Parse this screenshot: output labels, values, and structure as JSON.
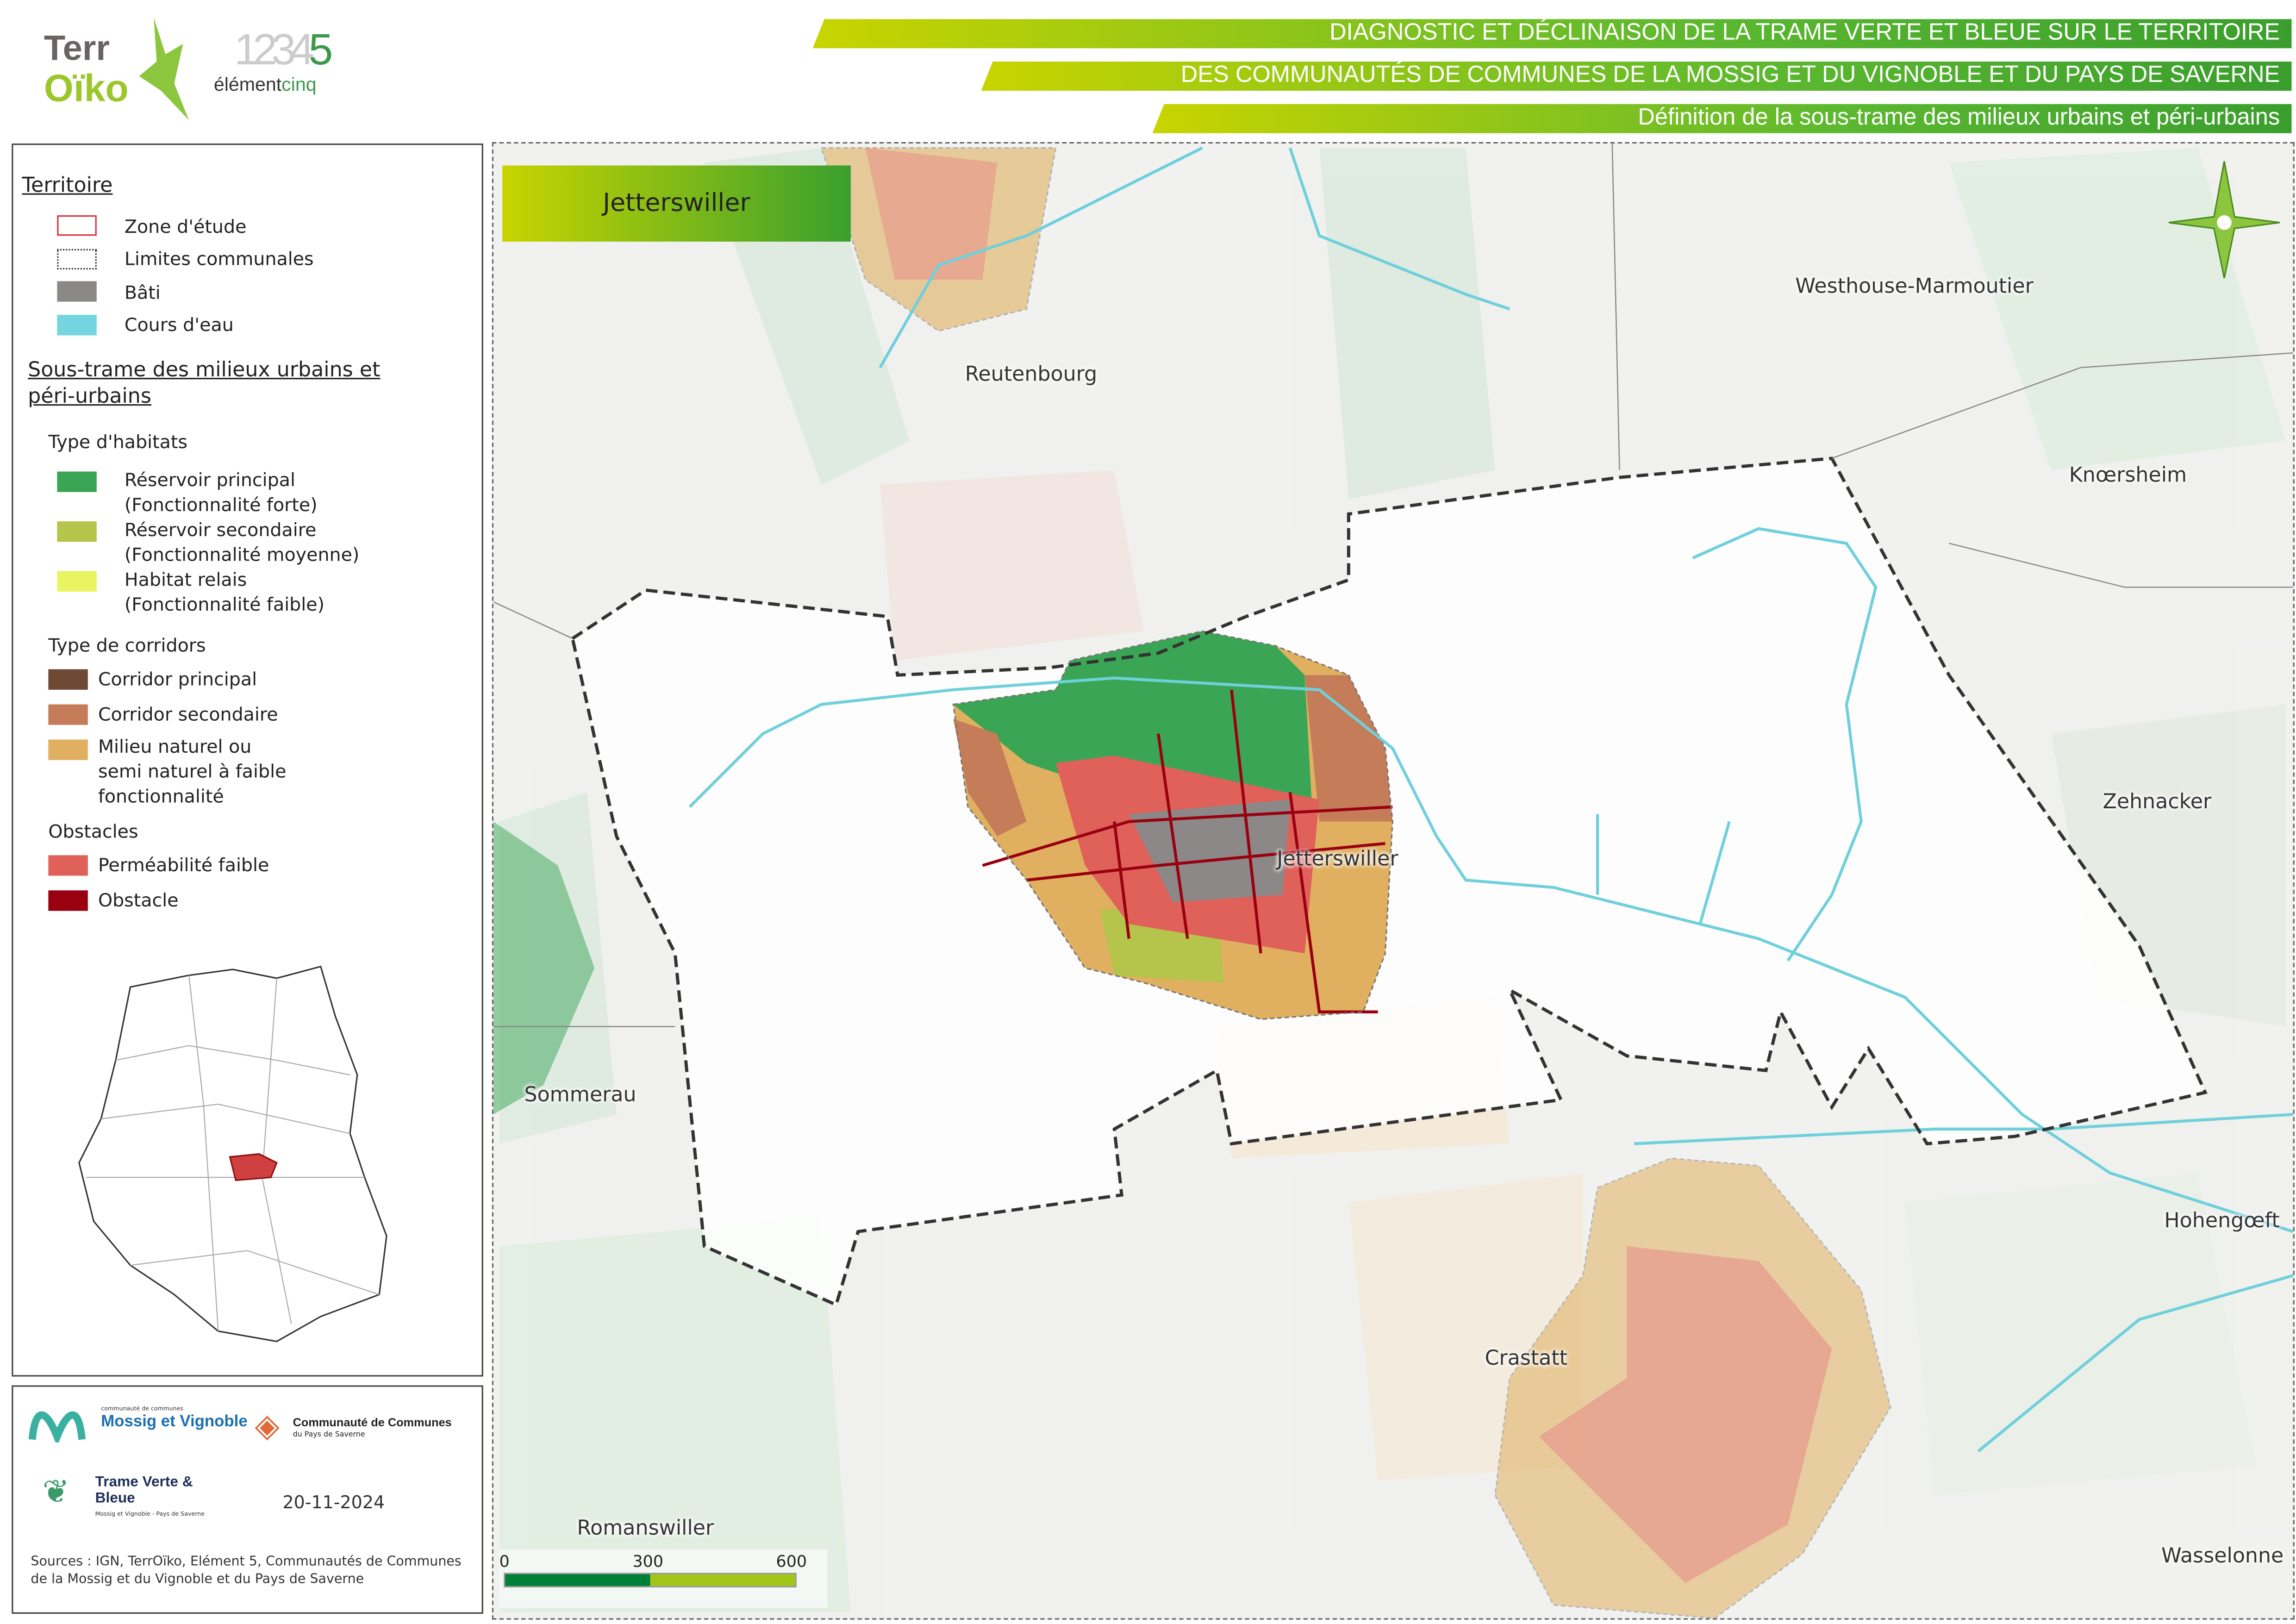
{
  "header": {
    "line1": "DIAGNOSTIC ET DÉCLINAISON DE LA TRAME VERTE ET BLEUE SUR LE TERRITOIRE",
    "line2": "DES COMMUNAUTÉS DE COMMUNES DE LA MOSSIG ET DU VIGNOBLE ET DU PAYS DE SAVERNE",
    "line3": "Définition de la sous-trame des milieux urbains et péri-urbains",
    "logo1": "TerrOïko",
    "logo2_digits": "12345",
    "logo2_text": "élémentcinq"
  },
  "legend": {
    "territoire_title": "Territoire",
    "territoire_items": [
      {
        "label": "Zone d'étude",
        "color": "#e03040"
      },
      {
        "label": "Limites communales",
        "color": "#333333"
      },
      {
        "label": "Bâti",
        "color": "#8c8888"
      },
      {
        "label": "Cours d'eau",
        "color": "#74d4e0"
      }
    ],
    "soustrame_title": "Sous-trame des milieux urbains et péri-urbains",
    "habitats_title": "Type d'habitats",
    "habitats": [
      {
        "label": "Réservoir principal",
        "sub": "(Fonctionnalité forte)",
        "color": "#3aa655"
      },
      {
        "label": "Réservoir secondaire",
        "sub": "(Fonctionnalité moyenne)",
        "color": "#b5c44a"
      },
      {
        "label": "Habitat relais",
        "sub": "(Fonctionnalité faible)",
        "color": "#e8f560"
      }
    ],
    "corridors_title": "Type de corridors",
    "corridors": [
      {
        "label": "Corridor principal",
        "color": "#6e4a34"
      },
      {
        "label": "Corridor secondaire",
        "color": "#c47d58"
      },
      {
        "label": "Milieu naturel ou semi naturel à faible fonctionnalité",
        "color": "#e0b060"
      }
    ],
    "obstacles_title": "Obstacles",
    "obstacles": [
      {
        "label": "Perméabilité faible",
        "color": "#e0605a"
      },
      {
        "label": "Obstacle",
        "color": "#990010"
      }
    ]
  },
  "footer": {
    "logo_mossig": "Mossig et Vignoble",
    "logo_mossig_small": "communauté de communes",
    "logo_saverne": "Communauté de Communes",
    "logo_saverne_sub": "du Pays de Saverne",
    "logo_tvb": "Trame Verte & Bleue",
    "logo_tvb_sub": "Mossig et Vignoble - Pays de Saverne",
    "date": "20-11-2024",
    "sources": "Sources : IGN, TerrOïko, Elément 5, Communautés de Communes de la Mossig et du Vignoble et du Pays de Saverne"
  },
  "map": {
    "commune_title": "Jetterswiller",
    "places": [
      "Reutenbourg",
      "Westhouse-Marmoutier",
      "Knœrsheim",
      "Zehnacker",
      "Jetterswiller",
      "Sommerau",
      "Hohengœft",
      "Crastatt",
      "Romanswiller",
      "Wasselonne"
    ],
    "scale": {
      "ticks": [
        "0",
        "300",
        "600 m"
      ],
      "colors": [
        "#007f36",
        "#a2c617"
      ]
    },
    "north_arrow": "north-arrow-icon"
  }
}
